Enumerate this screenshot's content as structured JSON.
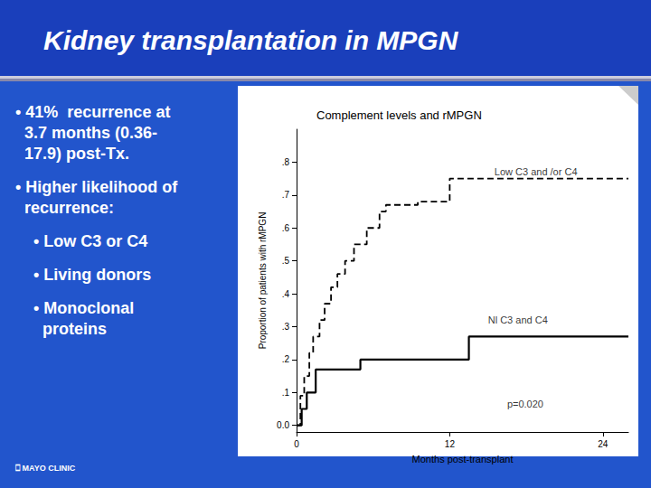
{
  "chart_data": {
    "type": "line",
    "title": "Kidney transplantation in MPGN",
    "subtitle": "Complement levels and rMPGN",
    "x_label": "Months post-transplant",
    "y_label": "Proportion of patients with rMPGN",
    "xlim": [
      0,
      26
    ],
    "xticks": [
      0,
      12,
      24
    ],
    "ylim": [
      -0.02,
      0.9
    ],
    "yticks": [
      {
        "value": 0.0,
        "label": "0.0"
      },
      {
        "value": 0.1,
        "label": ".1"
      },
      {
        "value": 0.2,
        "label": ".2"
      },
      {
        "value": 0.3,
        "label": ".3"
      },
      {
        "value": 0.4,
        "label": ".4"
      },
      {
        "value": 0.5,
        "label": ".5"
      },
      {
        "value": 0.6,
        "label": ".6"
      },
      {
        "value": 0.7,
        "label": ".7"
      },
      {
        "value": 0.8,
        "label": ".8"
      }
    ],
    "grid": false,
    "series": [
      {
        "color": "#000000",
        "line_style": "dashed",
        "x": [
          0,
          0.3,
          0.6,
          1.0,
          1.3,
          1.8,
          2.2,
          2.7,
          3.2,
          3.8,
          4.5,
          5.5,
          6.5,
          7.0,
          8.0,
          9.5,
          11.0,
          12.0,
          26
        ],
        "values": [
          0.0,
          0.09,
          0.15,
          0.22,
          0.27,
          0.32,
          0.37,
          0.42,
          0.46,
          0.5,
          0.55,
          0.6,
          0.65,
          0.67,
          0.67,
          0.68,
          0.68,
          0.75,
          0.75
        ]
      },
      {
        "color": "#000000",
        "line_style": "solid",
        "x": [
          0,
          0.4,
          0.8,
          1.5,
          2.5,
          4.0,
          5.0,
          11.0,
          12.0,
          13.5,
          14.5,
          26
        ],
        "values": [
          0.0,
          0.05,
          0.1,
          0.17,
          0.17,
          0.17,
          0.2,
          0.2,
          0.2,
          0.27,
          0.27,
          0.27
        ]
      }
    ],
    "annotations": [
      {
        "text": "Low C3 and /or C4",
        "x": 15.5,
        "y": 0.77
      },
      {
        "text": "Nl C3 and C4",
        "x": 15.0,
        "y": 0.32
      },
      {
        "text": "p=0.020",
        "x": 16.5,
        "y": 0.065
      },
      {
        "text": "• 41%  recurrence at\n  3.7 months (0.36-\n  17.9) post-Tx."
      },
      {
        "text": "• Higher likelihood of\n  recurrence:"
      },
      {
        "text": "    • Low C3 or C4"
      },
      {
        "text": "    • Living donors"
      },
      {
        "text": "    • Monoclonal\n      proteins"
      },
      {
        "text": "⎕ MAYO CLINIC"
      }
    ]
  }
}
